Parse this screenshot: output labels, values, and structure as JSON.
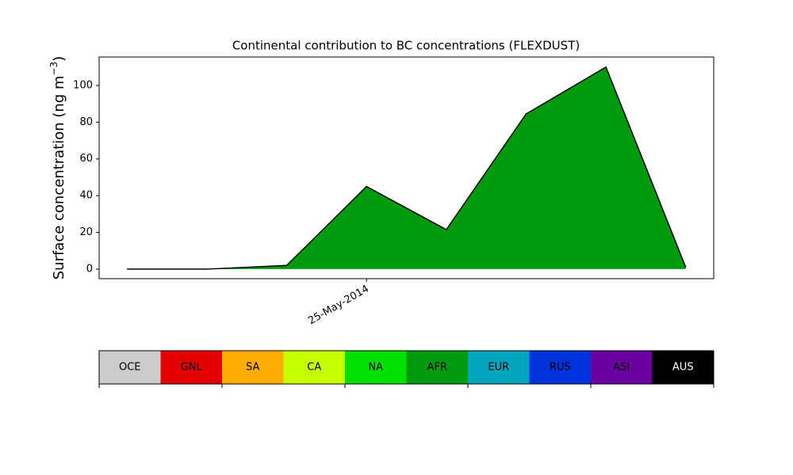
{
  "chart_data": {
    "type": "area",
    "title": "Continental contribution to BC concentrations (FLEXDUST)",
    "ylabel": [
      "Surface concentration (ng m",
      "−3",
      ")"
    ],
    "categories": [
      null,
      null,
      null,
      "25-May-2014",
      null,
      null,
      null,
      null
    ],
    "series": [
      {
        "color": "#009a0e",
        "values": [
          0,
          0,
          2,
          45,
          21.5,
          84.5,
          110,
          1
        ]
      }
    ],
    "line_color": "#000000",
    "xlim": [
      -0.35,
      7.35
    ],
    "ylim": [
      -5.2,
      115.5
    ],
    "yticks": [
      0,
      20,
      40,
      60,
      80,
      100
    ],
    "legend": [
      {
        "name": "OCE",
        "color": "#cccccc",
        "text_color": "#000000"
      },
      {
        "name": "GNL",
        "color": "#e50000",
        "text_color": "#000000"
      },
      {
        "name": "SA",
        "color": "#ffad00",
        "text_color": "#000000"
      },
      {
        "name": "CA",
        "color": "#c8ff00",
        "text_color": "#000000"
      },
      {
        "name": "NA",
        "color": "#00e000",
        "text_color": "#000000"
      },
      {
        "name": "AFR",
        "color": "#009a0e",
        "text_color": "#000000"
      },
      {
        "name": "EUR",
        "color": "#00a5bb",
        "text_color": "#000000"
      },
      {
        "name": "RUS",
        "color": "#0033dd",
        "text_color": "#000000"
      },
      {
        "name": "ASI",
        "color": "#6a00a0",
        "text_color": "#000000"
      },
      {
        "name": "AUS",
        "color": "#000000",
        "text_color": "#ffffff"
      }
    ]
  }
}
